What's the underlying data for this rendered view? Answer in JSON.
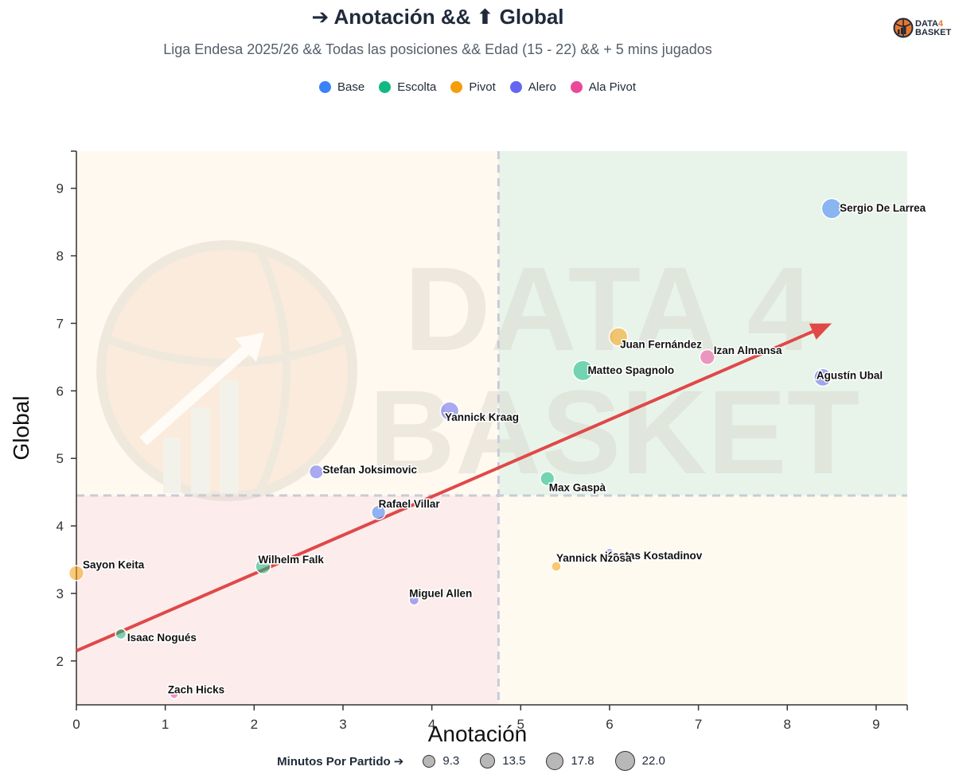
{
  "header": {
    "title": "➔ Anotación && ⬆ Global",
    "subtitle": "Liga Endesa 2025/26 && Todas las posiciones && Edad (15 - 22) && + 5 mins jugados",
    "logo_line1": "DATA",
    "logo_four": "4",
    "logo_line2": "BASKET",
    "watermark_line1": "DATA 4",
    "watermark_line2": "BASKET"
  },
  "legend": {
    "items": [
      {
        "label": "Base",
        "color": "#3b82f6"
      },
      {
        "label": "Escolta",
        "color": "#10b981"
      },
      {
        "label": "Pivot",
        "color": "#f59e0b"
      },
      {
        "label": "Alero",
        "color": "#6366f1"
      },
      {
        "label": "Ala Pivot",
        "color": "#ec4899"
      }
    ]
  },
  "size_legend": {
    "title": "Minutos Por Partido ➔",
    "items": [
      "9.3",
      "13.5",
      "17.8",
      "22.0"
    ],
    "values": [
      9.3,
      13.5,
      17.8,
      22.0
    ]
  },
  "chart_data": {
    "type": "scatter",
    "title": "➔ Anotación && ⬆ Global",
    "xlabel": "Anotación",
    "ylabel": "Global",
    "xlim": [
      0,
      9.35
    ],
    "ylim": [
      1.35,
      9.55
    ],
    "xticks": [
      0,
      1,
      2,
      3,
      4,
      5,
      6,
      7,
      8,
      9
    ],
    "yticks": [
      2,
      3,
      4,
      5,
      6,
      7,
      8,
      9
    ],
    "quadrant_split": {
      "x": 4.75,
      "y": 4.45
    },
    "quadrant_colors": {
      "top_left": "#fff9f0",
      "top_right": "#e8f4ea",
      "bottom_left": "#fdecec",
      "bottom_right": "#fefaf0"
    },
    "trend_line": {
      "from": [
        0,
        2.15
      ],
      "to": [
        8.5,
        7.0
      ],
      "color": "#e04848"
    },
    "position_colors": {
      "Base": "#3b82f6",
      "Escolta": "#10b981",
      "Pivot": "#f59e0b",
      "Alero": "#6366f1",
      "Ala Pivot": "#ec4899"
    },
    "points": [
      {
        "name": "Sergio De Larrea",
        "x": 8.5,
        "y": 8.7,
        "pos": "Base",
        "min": 22.0
      },
      {
        "name": "Juan Fernández",
        "x": 6.1,
        "y": 6.8,
        "pos": "Pivot",
        "min": 20.0
      },
      {
        "name": "Izan Almansa",
        "x": 7.1,
        "y": 6.5,
        "pos": "Ala Pivot",
        "min": 16.0
      },
      {
        "name": "Agustín Ubal",
        "x": 8.4,
        "y": 6.2,
        "pos": "Alero",
        "min": 19.0
      },
      {
        "name": "Matteo Spagnolo",
        "x": 5.7,
        "y": 6.3,
        "pos": "Escolta",
        "min": 22.0
      },
      {
        "name": "Yannick Kraag",
        "x": 4.2,
        "y": 5.7,
        "pos": "Alero",
        "min": 20.0
      },
      {
        "name": "Stefan Joksimovic",
        "x": 2.7,
        "y": 4.8,
        "pos": "Alero",
        "min": 15.0
      },
      {
        "name": "Max Gaspà",
        "x": 5.3,
        "y": 4.7,
        "pos": "Escolta",
        "min": 15.0
      },
      {
        "name": "Rafael Villar",
        "x": 3.4,
        "y": 4.2,
        "pos": "Base",
        "min": 15.0
      },
      {
        "name": "Kostas Kostadinov",
        "x": 6.0,
        "y": 3.6,
        "pos": "Alero",
        "min": 9.3
      },
      {
        "name": "Yannick Nzosa",
        "x": 5.4,
        "y": 3.4,
        "pos": "Pivot",
        "min": 10.0
      },
      {
        "name": "Sayon Keita",
        "x": 0.0,
        "y": 3.3,
        "pos": "Pivot",
        "min": 16.0
      },
      {
        "name": "Wilhelm Falk",
        "x": 2.1,
        "y": 3.4,
        "pos": "Escolta",
        "min": 16.0
      },
      {
        "name": "Miguel Allen",
        "x": 3.8,
        "y": 2.9,
        "pos": "Alero",
        "min": 10.0
      },
      {
        "name": "Isaac Nogués",
        "x": 0.5,
        "y": 2.4,
        "pos": "Escolta",
        "min": 11.0
      },
      {
        "name": "Zach Hicks",
        "x": 1.1,
        "y": 1.5,
        "pos": "Ala Pivot",
        "min": 8.0
      }
    ]
  }
}
